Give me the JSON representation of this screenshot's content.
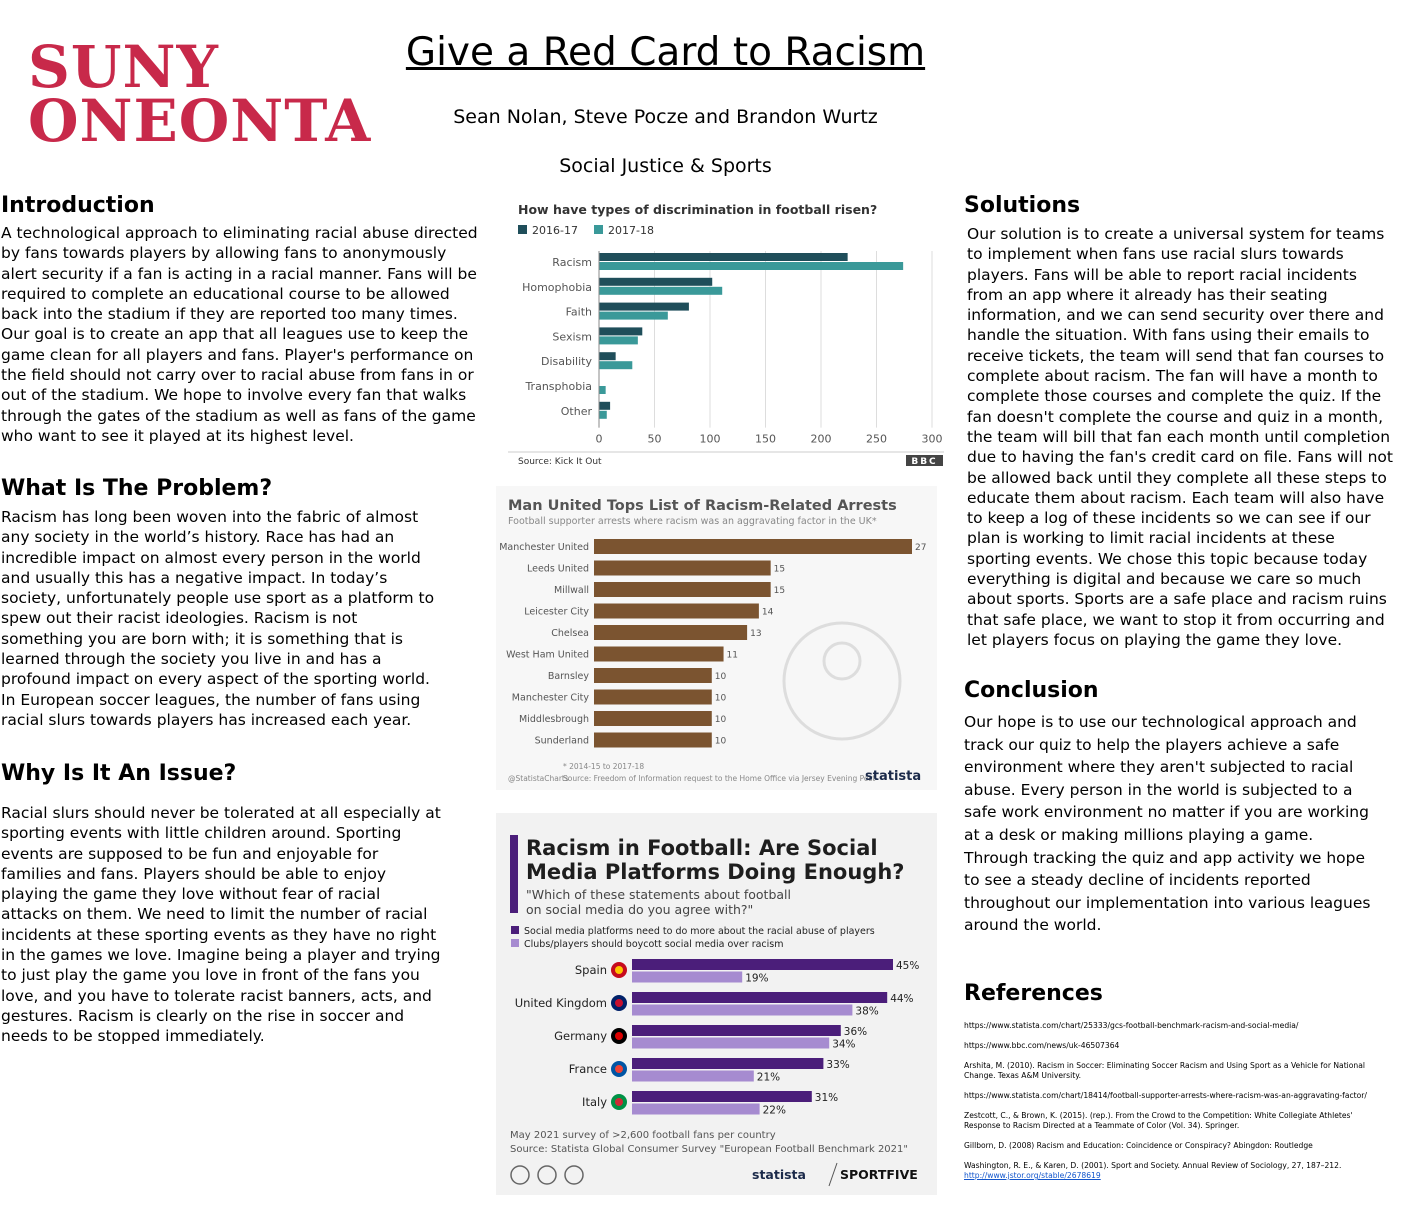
{
  "header": {
    "logo_line1": "SUNY",
    "logo_line2": "ONEONTA",
    "title": "Give a Red Card to Racism",
    "authors": "Sean Nolan, Steve Pocze and Brandon Wurtz",
    "topic": "Social Justice & Sports"
  },
  "intro": {
    "heading": "Introduction",
    "text": "A technological approach to eliminating racial abuse directed by fans towards players by allowing fans to anonymously alert security if a fan is acting in a racial manner. Fans will be required to complete an educational course to be allowed back into the stadium if they are reported too many times. Our goal is to create an app that all leagues use to keep the game clean for all players and fans. Player's performance on the field should not carry over to racial abuse from fans in or out of the stadium.  We hope to involve every fan that walks through the gates of the stadium as well as fans of the game who want to see it played at its highest level."
  },
  "problem": {
    "heading": "What Is The Problem?",
    "text": "Racism has long been woven into the fabric of almost any society in the world’s history. Race has had an incredible impact on almost every person in the world and usually this has a negative impact. In today’s society, unfortunately people use sport as a platform to spew out their racist ideologies. Racism is not something you are born with; it is something that is learned through the society you live in and has a profound impact on every aspect of the sporting world. In European soccer leagues, the number of fans using racial slurs towards players has increased each year."
  },
  "issue": {
    "heading": "Why Is It An Issue?",
    "text": "Racial slurs should never be tolerated at all especially at sporting events with little children around. Sporting events are supposed to be fun and enjoyable for families and fans. Players should be able to enjoy playing the game they love without fear of racial attacks on them. We need to limit the number of racial incidents at these sporting events as they have no right in the games we love. Imagine being a player and trying to just play the game you love in front of the fans you love, and you have to tolerate racist banners, acts, and gestures. Racism is clearly on the rise in soccer and needs to be stopped immediately."
  },
  "solutions": {
    "heading": "Solutions",
    "text": "Our solution is to create a universal system for teams to implement when fans use racial slurs towards players. Fans will be able to report racial incidents from an app where it already has their seating information, and we can send security over there and handle the situation. With fans using their emails to receive tickets, the team will send that fan courses to complete about racism. The fan will have a month to complete those courses and complete the quiz. If the fan doesn't complete the course and quiz in a month, the team will bill that fan each month until completion due to having the fan's credit card on file. Fans will not be allowed back until they complete all these steps to educate them about racism. Each team will also have to keep a log of these incidents so we can see if our plan is working to limit racial incidents at these sporting events. We chose this topic because today everything is digital and because we care so much about sports. Sports are a safe place and racism ruins that safe place, we want to stop it from occurring and let players focus on playing the game they love."
  },
  "conclusion": {
    "heading": "Conclusion",
    "text": "Our hope is to use our technological approach and track our quiz to help the players achieve a safe environment where they aren't subjected to racial abuse. Every person in the world is subjected to a safe work environment no matter if you are working at a desk or making millions playing a game. Through tracking the quiz and app activity we hope to see a steady decline of incidents reported throughout our implementation into various leagues around the world."
  },
  "references": {
    "heading": "References",
    "items": [
      "https://www.statista.com/chart/25333/gcs-football-benchmark-racism-and-social-media/",
      "https://www.bbc.com/news/uk-46507364",
      "Arshita, M. (2010). Racism in Soccer: Eliminating Soccer Racism and Using Sport as a Vehicle for National Change. Texas A&M University.",
      "https://www.statista.com/chart/18414/football-supporter-arrests-where-racism-was-an-aggravating-factor/",
      "Zestcott, C., & Brown, K. (2015). (rep.). From the Crowd to the Competition: White Collegiate Athletes' Response to Racism Directed at a Teammate of Color (Vol. 34). Springer.",
      "Gillborn, D. (2008) Racism and Education: Coincidence or Conspiracy? Abingdon: Routledge",
      "Washington, R. E., & Karen, D. (2001). Sport and Society. Annual Review of Sociology, 27, 187–212.",
      "http://www.jstor.org/stable/2678619"
    ]
  },
  "chart_data": [
    {
      "type": "bar",
      "title": "How have types of discrimination in football risen?",
      "categories": [
        "Racism",
        "Homophobia",
        "Faith",
        "Sexism",
        "Disability",
        "Transphobia",
        "Other"
      ],
      "series": [
        {
          "name": "2016-17",
          "values": [
            224,
            102,
            81,
            39,
            15,
            0,
            10
          ],
          "color": "#1f4e5a"
        },
        {
          "name": "2017-18",
          "values": [
            274,
            111,
            62,
            35,
            30,
            6,
            7
          ],
          "color": "#3a9999"
        }
      ],
      "xticks": [
        "0",
        "50",
        "100",
        "150",
        "200",
        "250",
        "300"
      ],
      "xlim": [
        0,
        300
      ],
      "source": "Source: Kick It Out",
      "brand": "BBC"
    },
    {
      "type": "bar",
      "title": "Man United Tops List of Racism-Related Arrests",
      "subtitle": "Football supporter arrests where racism was an aggravating factor in the UK*",
      "categories": [
        "Manchester United",
        "Leeds United",
        "Millwall",
        "Leicester City",
        "Chelsea",
        "West Ham United",
        "Barnsley",
        "Manchester City",
        "Middlesbrough",
        "Sunderland"
      ],
      "values": [
        27,
        15,
        15,
        14,
        13,
        11,
        10,
        10,
        10,
        10
      ],
      "xlim": [
        0,
        27
      ],
      "color": "#7b5430",
      "footnote": "* 2014-15 to 2017-18",
      "handle": "@StatistaCharts",
      "source": "Source: Freedom of Information request to the Home Office via Jersey Evening Post",
      "brand": "statista"
    },
    {
      "type": "bar",
      "title_line1": "Racism in Football: Are Social",
      "title_line2": "Media Platforms Doing Enough?",
      "subtitle_line1": "\"Which of these statements about football",
      "subtitle_line2": "on social media do you agree with?\"",
      "categories": [
        "Spain",
        "United Kingdom",
        "Germany",
        "France",
        "Italy"
      ],
      "series": [
        {
          "name": "Social media platforms need to do more about the racial abuse of players",
          "values": [
            45,
            44,
            36,
            33,
            31
          ],
          "color": "#4b1e7a"
        },
        {
          "name": "Clubs/players should boycott social media over racism",
          "values": [
            19,
            38,
            34,
            21,
            22
          ],
          "color": "#a68bd0"
        }
      ],
      "xlim": [
        0,
        45
      ],
      "footer_line1": "May 2021 survey of >2,600 football fans per country",
      "footer_line2": "Source: Statista Global Consumer Survey \"European Football Benchmark 2021\"",
      "brand1": "statista",
      "brand2": "SPORTFIVE"
    }
  ]
}
